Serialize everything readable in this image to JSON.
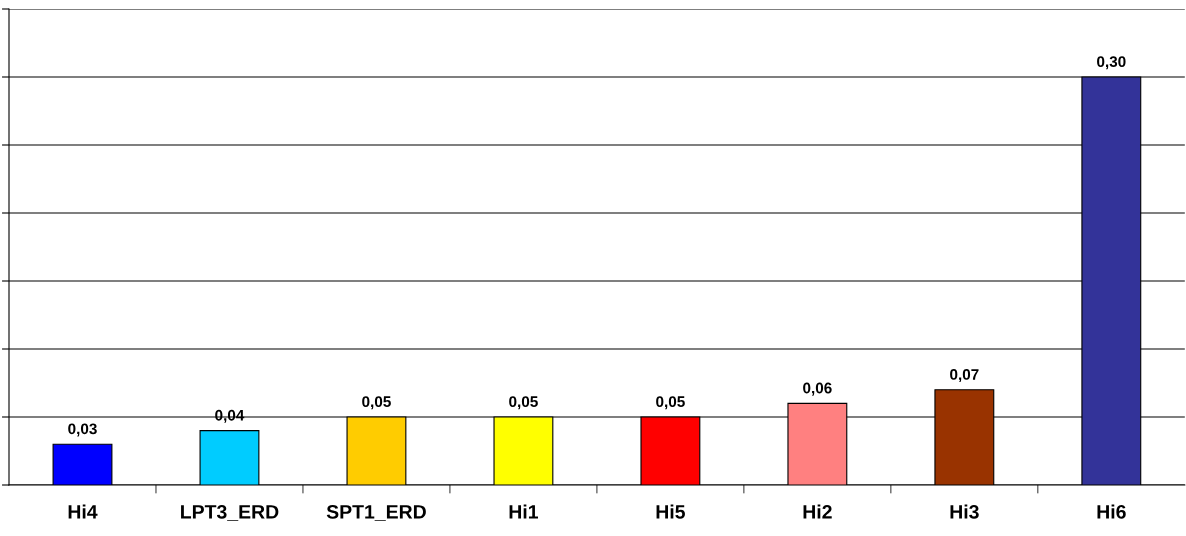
{
  "chart_data": {
    "type": "bar",
    "categories": [
      "Hi4",
      "LPT3_ERD",
      "SPT1_ERD",
      "Hi1",
      "Hi5",
      "Hi2",
      "Hi3",
      "Hi6"
    ],
    "values": [
      0.03,
      0.04,
      0.05,
      0.05,
      0.05,
      0.06,
      0.07,
      0.3
    ],
    "colors": [
      "#0000ff",
      "#00ccff",
      "#ffcc00",
      "#ffff00",
      "#ff0000",
      "#ff8080",
      "#993300",
      "#333399"
    ],
    "value_labels": [
      "0,03",
      "0,04",
      "0,05",
      "0,05",
      "0,05",
      "0,06",
      "0,07",
      "0,30"
    ],
    "ylim": [
      0,
      0.35
    ],
    "yticks": [
      {
        "value": 0,
        "label": null
      },
      {
        "value": 0.05,
        "label": null
      },
      {
        "value": 0.1,
        "label": null
      },
      {
        "value": 0.15,
        "label": null
      },
      {
        "value": 0.2,
        "label": null
      },
      {
        "value": 0.25,
        "label": null
      },
      {
        "value": 0.3,
        "label": null
      },
      {
        "value": 0.35,
        "label": null
      }
    ],
    "grid": "y",
    "tick_labels": "x"
  }
}
